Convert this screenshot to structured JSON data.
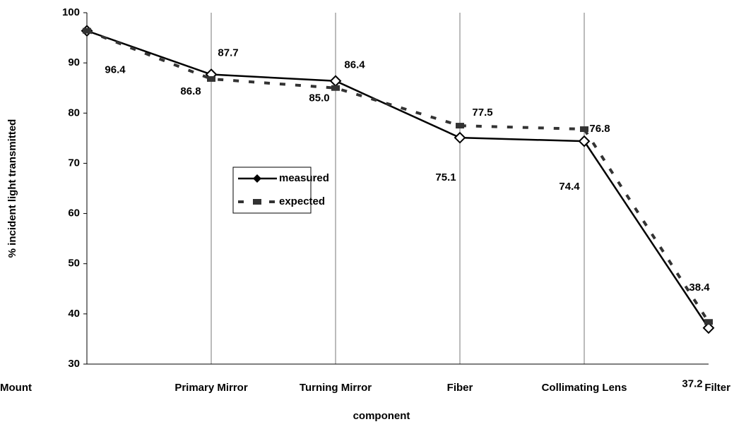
{
  "chart_data": {
    "type": "line",
    "x_label": "component",
    "y_label": "% incident light transmitted",
    "categories": [
      "Mount",
      "Primary Mirror",
      "Turning Mirror",
      "Fiber",
      "Collimating Lens",
      "Filter"
    ],
    "series": [
      {
        "name": "measured",
        "color": "#000000",
        "values": [
          96.4,
          87.7,
          86.4,
          75.1,
          74.4,
          37.2
        ],
        "value_labels": [
          "96.4",
          "87.7",
          "86.4",
          "75.1",
          "74.4",
          "37.2"
        ]
      },
      {
        "name": "expected",
        "color": "#333333",
        "dashed": true,
        "values": [
          96.4,
          86.8,
          85.0,
          77.5,
          76.8,
          38.4
        ],
        "value_labels": [
          null,
          "86.8",
          "85.0",
          "77.5",
          "76.8",
          "38.4"
        ]
      }
    ],
    "ylim": [
      30,
      100
    ],
    "yticks": [
      30,
      40,
      50,
      60,
      70,
      80,
      90,
      100
    ],
    "grid": true
  }
}
